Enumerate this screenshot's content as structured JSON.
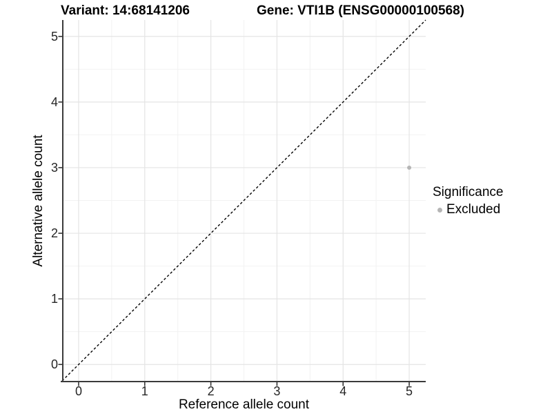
{
  "header": {
    "variant_title": "Variant: 14:68141206",
    "gene_title": "Gene: VTI1B (ENSG00000100568)"
  },
  "chart_data": {
    "type": "scatter",
    "title": "Variant: 14:68141206   Gene: VTI1B (ENSG00000100568)",
    "xlabel": "Reference allele count",
    "ylabel": "Alternative allele count",
    "xlim": [
      -0.25,
      5.25
    ],
    "ylim": [
      -0.25,
      5.25
    ],
    "x_ticks": [
      0,
      1,
      2,
      3,
      4,
      5
    ],
    "y_ticks": [
      0,
      1,
      2,
      3,
      4,
      5
    ],
    "x_minor_ticks": [
      0.5,
      1.5,
      2.5,
      3.5,
      4.5
    ],
    "y_minor_ticks": [
      0.5,
      1.5,
      2.5,
      3.5,
      4.5
    ],
    "grid": true,
    "points": [
      {
        "x": 5,
        "y": 3,
        "series": "Excluded"
      }
    ],
    "reference_line": {
      "type": "identity-diagonal",
      "style": "dashed",
      "from": [
        -0.25,
        -0.25
      ],
      "to": [
        5.25,
        5.25
      ],
      "color": "#000000"
    },
    "legend": {
      "title": "Significance",
      "position": "right",
      "items": [
        {
          "label": "Excluded",
          "color": "#b5b5b5"
        }
      ]
    },
    "colors": {
      "point": "#b5b5b5",
      "grid_major": "#e4e4e4",
      "grid_minor": "#f2f2f2",
      "axis_line": "#3a3a3a",
      "tick_mark": "#333333",
      "background": "#ffffff"
    }
  }
}
